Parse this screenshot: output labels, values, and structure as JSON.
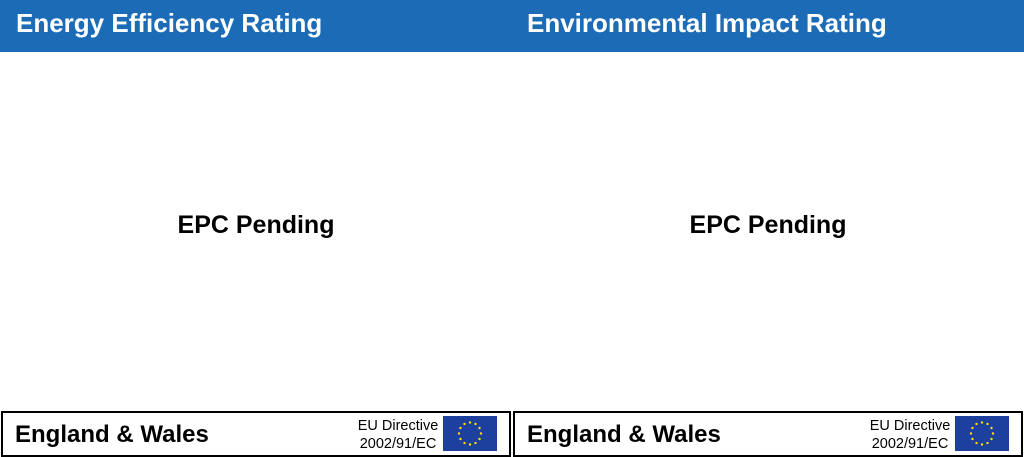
{
  "panels": [
    {
      "title": "Energy Efficiency Rating",
      "status": "EPC Pending",
      "footer": {
        "country": "England & Wales",
        "directive_line1": "EU Directive",
        "directive_line2": "2002/91/EC",
        "flag_icon": "eu-flag-icon"
      }
    },
    {
      "title": "Environmental Impact Rating",
      "status": "EPC Pending",
      "footer": {
        "country": "England & Wales",
        "directive_line1": "EU Directive",
        "directive_line2": "2002/91/EC",
        "flag_icon": "eu-flag-icon"
      }
    }
  ],
  "colors": {
    "header": "#1b6bb6",
    "flag": "#1d3f9e",
    "stars": "#ffdd00"
  }
}
